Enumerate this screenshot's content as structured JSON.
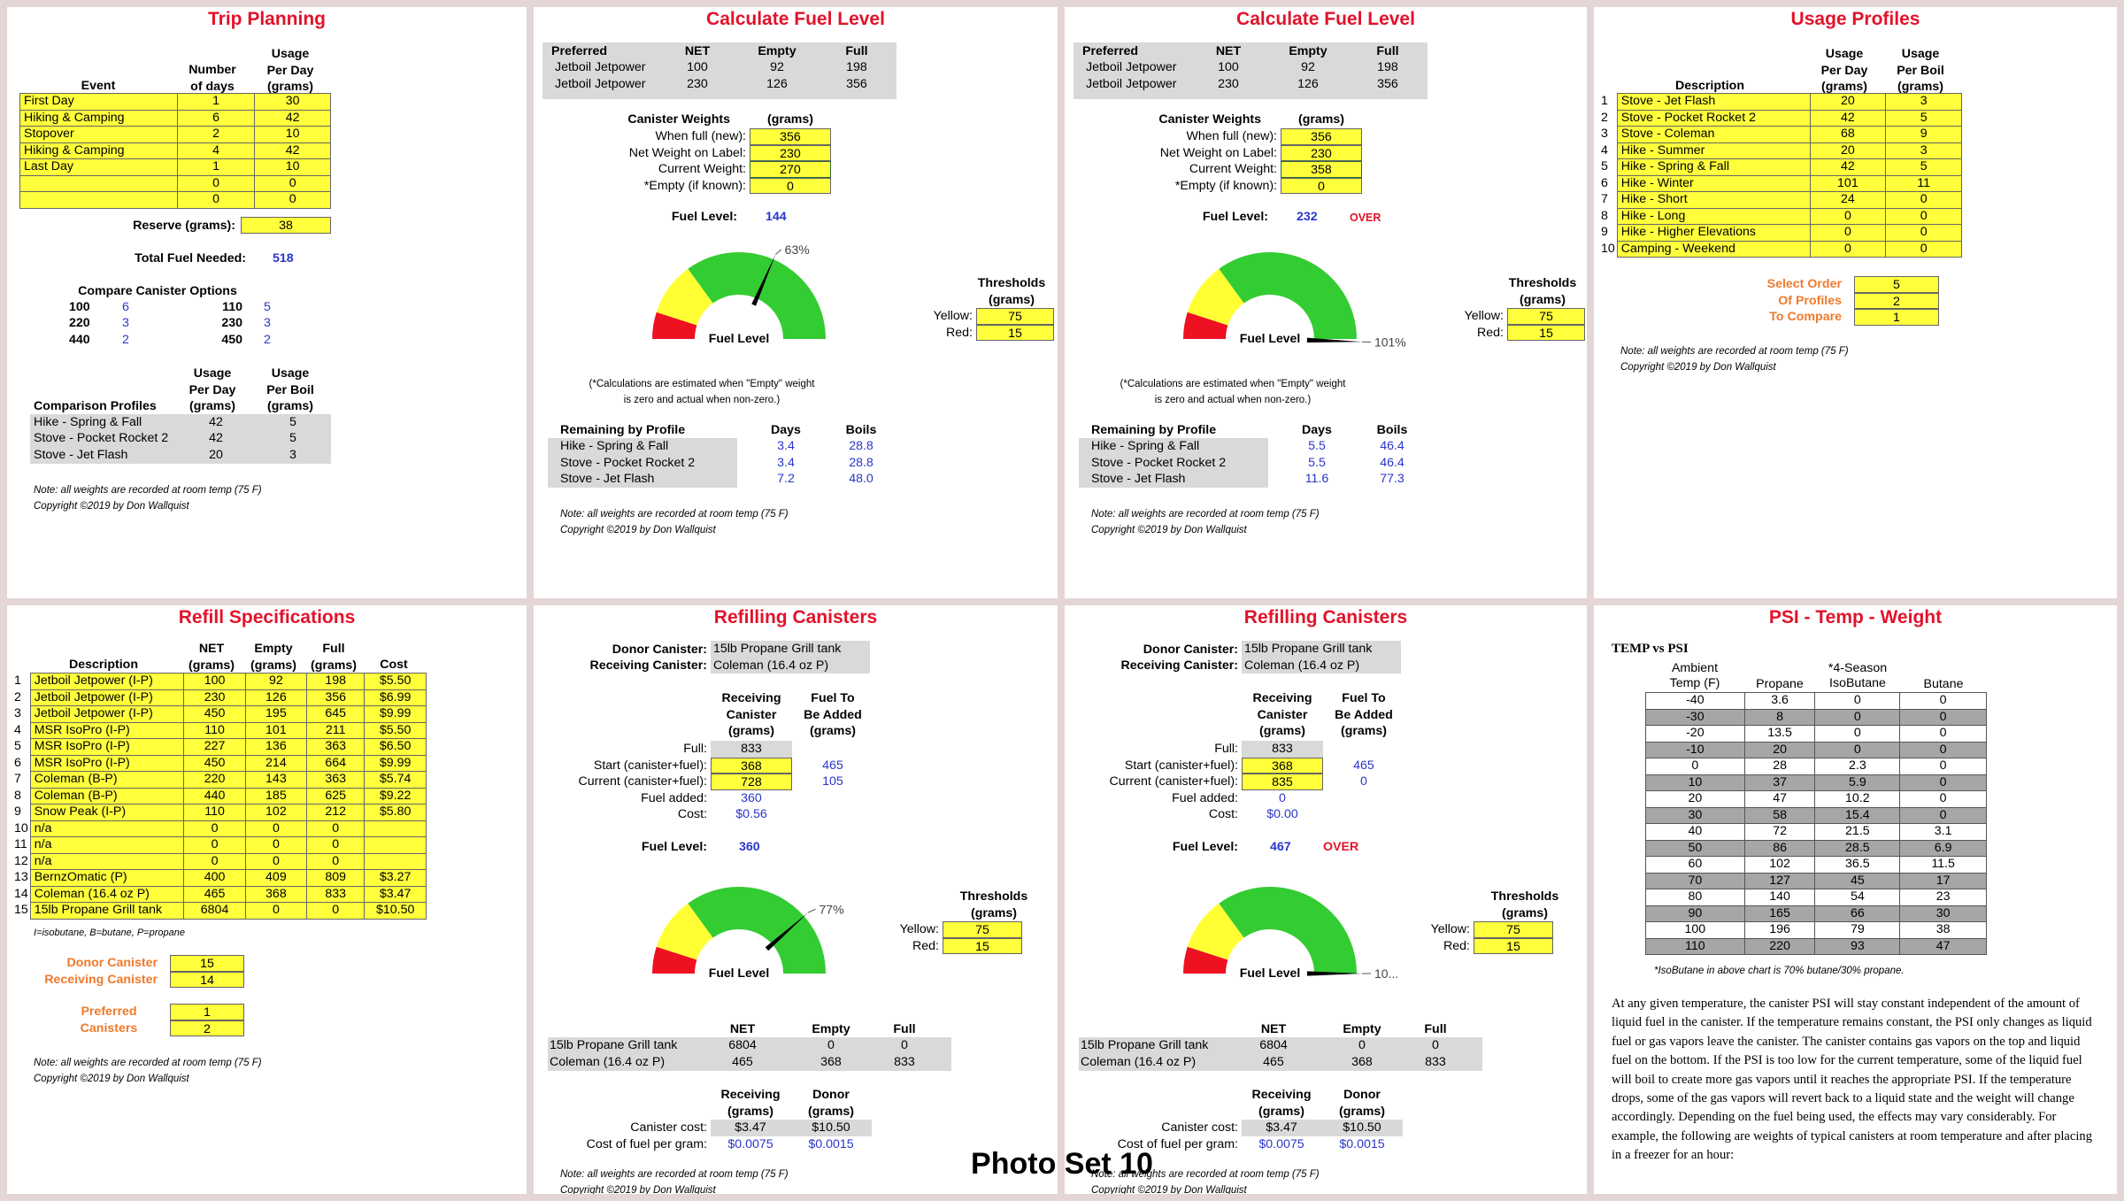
{
  "caption": "Photo Set 10",
  "colors": {
    "title": "#e2122b",
    "input_yellow": "#ffff3c",
    "shade_grey": "#d9d9d9",
    "value_blue": "#2a35c9",
    "label_orange": "#ee7a2d",
    "gauge_green": "#33cc33",
    "gauge_yellow": "#ffff33",
    "gauge_red": "#ee1122"
  },
  "note": "Note: all weights are recorded at room temp (75 F)",
  "copyright": "Copyright ©2019 by Don Wallquist",
  "trip": {
    "title": "Trip Planning",
    "h_event": "Event",
    "h_days": [
      "Number",
      "of days"
    ],
    "h_usage": [
      "Usage",
      "Per Day",
      "(grams)"
    ],
    "rows": [
      [
        "First Day",
        "1",
        "30"
      ],
      [
        "Hiking & Camping",
        "6",
        "42"
      ],
      [
        "Stopover",
        "2",
        "10"
      ],
      [
        "Hiking & Camping",
        "4",
        "42"
      ],
      [
        "Last Day",
        "1",
        "10"
      ],
      [
        "",
        "0",
        "0"
      ],
      [
        "",
        "0",
        "0"
      ]
    ],
    "reserve_label": "Reserve (grams):",
    "reserve": "38",
    "total_label": "Total Fuel Needed:",
    "total": "518",
    "compare_label": "Compare Canister Options",
    "compare": [
      [
        "100",
        "6",
        "110",
        "5"
      ],
      [
        "220",
        "3",
        "230",
        "3"
      ],
      [
        "440",
        "2",
        "450",
        "2"
      ]
    ],
    "prof_header": "Comparison Profiles",
    "prof_h_day": [
      "Usage",
      "Per Day",
      "(grams)"
    ],
    "prof_h_boil": [
      "Usage",
      "Per Boil",
      "(grams)"
    ],
    "profiles": [
      [
        "Hike - Spring & Fall",
        "42",
        "5"
      ],
      [
        "Stove - Pocket Rocket 2",
        "42",
        "5"
      ],
      [
        "Stove - Jet Flash",
        "20",
        "3"
      ]
    ]
  },
  "fuel_common": {
    "title": "Calculate Fuel Level",
    "pref_header": [
      "Preferred",
      "NET",
      "Empty",
      "Full"
    ],
    "pref_rows": [
      [
        "Jetboil Jetpower",
        "100",
        "92",
        "198"
      ],
      [
        "Jetboil Jetpower",
        "230",
        "126",
        "356"
      ]
    ],
    "cw_label": "Canister Weights",
    "cw_grams": "(grams)",
    "cw_labels": [
      "When full (new):",
      "Net Weight on Label:",
      "Current Weight:",
      "*Empty (if known):"
    ],
    "level_label": "Fuel Level:",
    "gauge_label": "Fuel Level",
    "thresholds": [
      "Thresholds",
      "(grams)"
    ],
    "yellow_label": "Yellow:",
    "red_label": "Red:",
    "yellow": "75",
    "red": "15",
    "calc_note1": "(*Calculations are estimated when \"Empty\" weight",
    "calc_note2": "is zero and actual when non-zero.)",
    "rem_header": [
      "Remaining by Profile",
      "Days",
      "Boils"
    ],
    "rem_names": [
      "Hike - Spring & Fall",
      "Stove - Pocket Rocket 2",
      "Stove - Jet Flash"
    ]
  },
  "fuel1": {
    "cw_values": [
      "356",
      "230",
      "270",
      "0"
    ],
    "level": "144",
    "over": "",
    "pct": 63,
    "pct_label": "63%",
    "rem": [
      [
        "3.4",
        "28.8"
      ],
      [
        "3.4",
        "28.8"
      ],
      [
        "7.2",
        "48.0"
      ]
    ]
  },
  "fuel2": {
    "cw_values": [
      "356",
      "230",
      "358",
      "0"
    ],
    "level": "232",
    "over": "OVER",
    "pct": 101,
    "pct_label": "101%",
    "rem": [
      [
        "5.5",
        "46.4"
      ],
      [
        "5.5",
        "46.4"
      ],
      [
        "11.6",
        "77.3"
      ]
    ]
  },
  "usage": {
    "title": "Usage Profiles",
    "h_desc": "Description",
    "h_day": [
      "Usage",
      "Per Day",
      "(grams)"
    ],
    "h_boil": [
      "Usage",
      "Per Boil",
      "(grams)"
    ],
    "rows": [
      [
        "1",
        "Stove - Jet Flash",
        "20",
        "3"
      ],
      [
        "2",
        "Stove - Pocket Rocket 2",
        "42",
        "5"
      ],
      [
        "3",
        "Stove - Coleman",
        "68",
        "9"
      ],
      [
        "4",
        "Hike - Summer",
        "20",
        "3"
      ],
      [
        "5",
        "Hike - Spring & Fall",
        "42",
        "5"
      ],
      [
        "6",
        "Hike - Winter",
        "101",
        "11"
      ],
      [
        "7",
        "Hike - Short",
        "24",
        "0"
      ],
      [
        "8",
        "Hike - Long",
        "0",
        "0"
      ],
      [
        "9",
        "Hike - Higher Elevations",
        "0",
        "0"
      ],
      [
        "10",
        "Camping - Weekend",
        "0",
        "0"
      ]
    ],
    "select_labels": [
      "Select Order",
      "Of Profiles",
      "To Compare"
    ],
    "select_values": [
      "5",
      "2",
      "1"
    ]
  },
  "refill_spec": {
    "title": "Refill Specifications",
    "header": [
      "Description",
      "NET",
      "Empty",
      "Full",
      "Cost"
    ],
    "h_grams": "(grams)",
    "rows": [
      [
        "1",
        "Jetboil Jetpower (I-P)",
        "100",
        "92",
        "198",
        "$5.50"
      ],
      [
        "2",
        "Jetboil Jetpower (I-P)",
        "230",
        "126",
        "356",
        "$6.99"
      ],
      [
        "3",
        "Jetboil Jetpower (I-P)",
        "450",
        "195",
        "645",
        "$9.99"
      ],
      [
        "4",
        "MSR IsoPro (I-P)",
        "110",
        "101",
        "211",
        "$5.50"
      ],
      [
        "5",
        "MSR IsoPro (I-P)",
        "227",
        "136",
        "363",
        "$6.50"
      ],
      [
        "6",
        "MSR IsoPro (I-P)",
        "450",
        "214",
        "664",
        "$9.99"
      ],
      [
        "7",
        "Coleman (B-P)",
        "220",
        "143",
        "363",
        "$5.74"
      ],
      [
        "8",
        "Coleman (B-P)",
        "440",
        "185",
        "625",
        "$9.22"
      ],
      [
        "9",
        "Snow Peak (I-P)",
        "110",
        "102",
        "212",
        "$5.80"
      ],
      [
        "10",
        "n/a",
        "0",
        "0",
        "0",
        ""
      ],
      [
        "11",
        "n/a",
        "0",
        "0",
        "0",
        ""
      ],
      [
        "12",
        "n/a",
        "0",
        "0",
        "0",
        ""
      ],
      [
        "13",
        "BernzOmatic (P)",
        "400",
        "409",
        "809",
        "$3.27"
      ],
      [
        "14",
        "Coleman (16.4 oz P)",
        "465",
        "368",
        "833",
        "$3.47"
      ],
      [
        "15",
        "15lb Propane Grill tank",
        "6804",
        "0",
        "0",
        "$10.50"
      ]
    ],
    "legend": "I=isobutane, B=butane, P=propane",
    "donor_label": "Donor Canister",
    "donor": "15",
    "recv_label": "Receiving Canister",
    "recv": "14",
    "pref_label": [
      "Preferred",
      "Canisters"
    ],
    "pref": [
      "1",
      "2"
    ]
  },
  "refill_common": {
    "title": "Refilling Canisters",
    "donor_label": "Donor Canister:",
    "donor": "15lb Propane Grill tank",
    "recv_label": "Receiving Canister:",
    "recv": "Coleman (16.4 oz P)",
    "h_recv": [
      "Receiving",
      "Canister",
      "(grams)"
    ],
    "h_add": [
      "Fuel To",
      "Be Added",
      "(grams)"
    ],
    "labels": [
      "Full:",
      "Start (canister+fuel):",
      "Current (canister+fuel):",
      "Fuel added:",
      "Cost:"
    ],
    "full": "833",
    "tab_header": [
      "NET",
      "Empty",
      "Full"
    ],
    "tab_rows": [
      [
        "15lb Propane Grill tank",
        "6804",
        "0",
        "0"
      ],
      [
        "Coleman (16.4 oz P)",
        "465",
        "368",
        "833"
      ]
    ],
    "cost_header": [
      "Receiving",
      "(grams)",
      "Donor",
      "(grams)"
    ],
    "cost_labels": [
      "Canister cost:",
      "Cost of fuel per gram:"
    ],
    "cost_recv": [
      "$3.47",
      "$0.0075"
    ],
    "cost_donor": [
      "$10.50",
      "$0.0015"
    ]
  },
  "refill1": {
    "start": "368",
    "current": "728",
    "add_start": "465",
    "add_current": "105",
    "added": "360",
    "cost": "$0.56",
    "level": "360",
    "over": "",
    "pct": 77,
    "pct_label": "77%"
  },
  "refill2": {
    "start": "368",
    "current": "835",
    "add_start": "465",
    "add_current": "0",
    "added": "0",
    "cost": "$0.00",
    "level": "467",
    "over": "OVER",
    "pct": 100,
    "pct_label": "10..."
  },
  "psi": {
    "title": "PSI - Temp - Weight",
    "subtitle": "TEMP vs PSI",
    "header": [
      "Ambient",
      "Temp (F)",
      "Propane",
      "*4-Season",
      "IsoButane",
      "Butane"
    ],
    "rows": [
      [
        "-40",
        "3.6",
        "0",
        "0"
      ],
      [
        "-30",
        "8",
        "0",
        "0"
      ],
      [
        "-20",
        "13.5",
        "0",
        "0"
      ],
      [
        "-10",
        "20",
        "0",
        "0"
      ],
      [
        "0",
        "28",
        "2.3",
        "0"
      ],
      [
        "10",
        "37",
        "5.9",
        "0"
      ],
      [
        "20",
        "47",
        "10.2",
        "0"
      ],
      [
        "30",
        "58",
        "15.4",
        "0"
      ],
      [
        "40",
        "72",
        "21.5",
        "3.1"
      ],
      [
        "50",
        "86",
        "28.5",
        "6.9"
      ],
      [
        "60",
        "102",
        "36.5",
        "11.5"
      ],
      [
        "70",
        "127",
        "45",
        "17"
      ],
      [
        "80",
        "140",
        "54",
        "23"
      ],
      [
        "90",
        "165",
        "66",
        "30"
      ],
      [
        "100",
        "196",
        "79",
        "38"
      ],
      [
        "110",
        "220",
        "93",
        "47"
      ]
    ],
    "footnote": "*IsoButane in above chart is 70% butane/30% propane.",
    "para": "At any given temperature, the canister PSI will stay constant independent of the amount of liquid fuel in the canister. If the temperature remains constant, the PSI only changes as liquid fuel or gas vapors leave the canister. The canister contains gas vapors on the top and liquid fuel on the bottom. If the PSI is too low for the current temperature, some of the liquid fuel will boil to create more gas vapors until it reaches the appropriate PSI. If the temperature drops, some of the gas vapors will revert back to a liquid state and the weight will change accordingly. Depending on the fuel being used, the effects may vary considerably. For example, the following are weights of typical canisters at room temperature and after placing in a freezer for an hour:"
  }
}
